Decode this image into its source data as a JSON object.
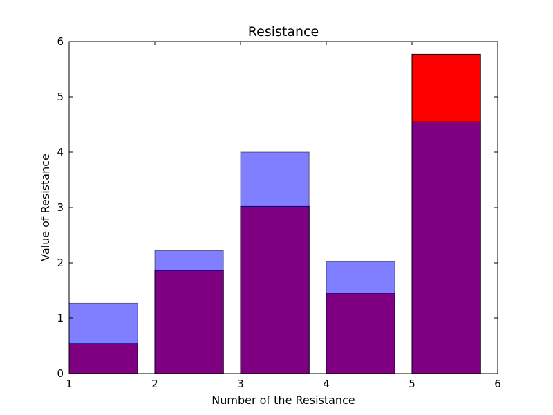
{
  "chart_data": {
    "type": "bar",
    "title": "Resistance",
    "xlabel": "Number of the Resistance",
    "ylabel": "Value of Resistance",
    "xlim": [
      1,
      6
    ],
    "ylim": [
      0,
      6
    ],
    "xticks": [
      1,
      2,
      3,
      4,
      5,
      6
    ],
    "yticks": [
      0,
      1,
      2,
      3,
      4,
      5,
      6
    ],
    "bar_width": 0.8,
    "grid": false,
    "series": [
      {
        "x": [
          1,
          2,
          3,
          4,
          5
        ],
        "values": [
          0.54,
          1.86,
          3.02,
          1.45,
          5.77
        ],
        "color": "#ff0000",
        "alpha": 1.0
      },
      {
        "x": [
          1,
          2,
          3,
          4,
          5
        ],
        "values": [
          1.27,
          2.22,
          4.0,
          2.02,
          4.55
        ],
        "color": "#0000ff",
        "alpha": 0.5
      }
    ]
  }
}
